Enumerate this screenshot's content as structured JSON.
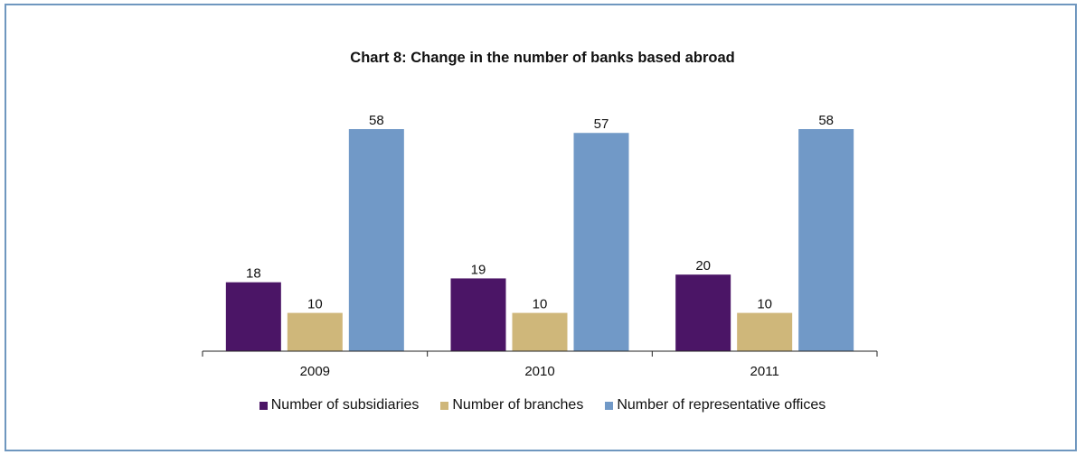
{
  "chart_data": {
    "type": "bar",
    "title": "Chart 8: Change in the number of banks based abroad",
    "xlabel": "",
    "ylabel": "",
    "categories": [
      "2009",
      "2010",
      "2011"
    ],
    "series": [
      {
        "name": "Number of subsidiaries",
        "color": "#4b1566",
        "values": [
          18,
          19,
          20
        ]
      },
      {
        "name": "Number of branches",
        "color": "#cfb77a",
        "values": [
          10,
          10,
          10
        ]
      },
      {
        "name": "Number of representative offices",
        "color": "#7199c7",
        "values": [
          58,
          57,
          58
        ]
      }
    ],
    "ylim": [
      0,
      58
    ],
    "grid": false,
    "legend_position": "bottom",
    "data_labels": true
  }
}
